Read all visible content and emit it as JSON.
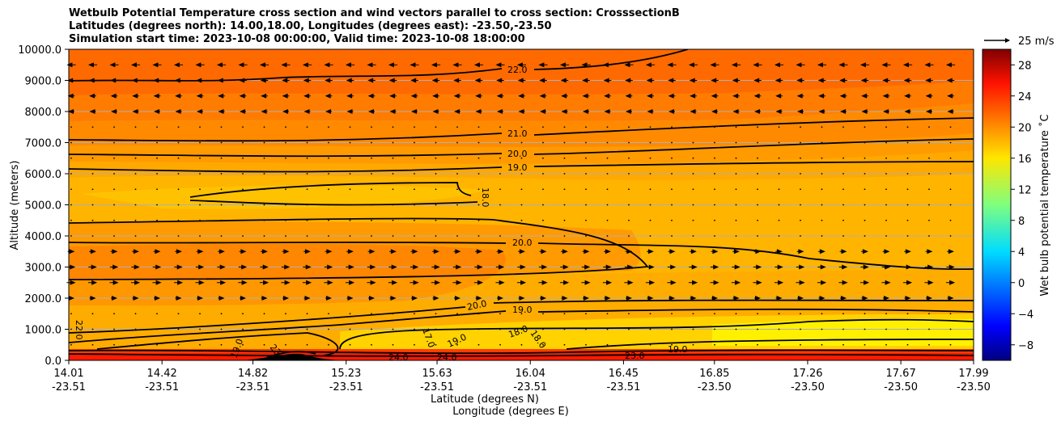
{
  "title_lines": [
    "Wetbulb Potential Temperature cross section and wind vectors parallel to cross section: CrosssectionB",
    "Latitudes (degrees north): 14.00,18.00, Longitudes (degrees east): -23.50,-23.50",
    "Simulation start time: 2023-10-08 00:00:00, Valid time: 2023-10-08 18:00:00"
  ],
  "quiver_key": "25 m/s",
  "chart_data": {
    "type": "heatmap",
    "title": "Wetbulb Potential Temperature cross section and wind vectors parallel to cross section: CrosssectionB",
    "ylabel": "Altitude (meters)",
    "xlabel_lines": [
      "Latitude (degrees N)",
      "Longitude (degrees E)"
    ],
    "ylim": [
      0,
      10000
    ],
    "y_ticks": [
      "0.0",
      "1000.0",
      "2000.0",
      "3000.0",
      "4000.0",
      "5000.0",
      "6000.0",
      "7000.0",
      "8000.0",
      "9000.0",
      "10000.0"
    ],
    "x_ticks": [
      {
        "lat": "14.01",
        "lon": "-23.51"
      },
      {
        "lat": "14.42",
        "lon": "-23.51"
      },
      {
        "lat": "14.82",
        "lon": "-23.51"
      },
      {
        "lat": "15.23",
        "lon": "-23.51"
      },
      {
        "lat": "15.63",
        "lon": "-23.51"
      },
      {
        "lat": "16.04",
        "lon": "-23.51"
      },
      {
        "lat": "16.45",
        "lon": "-23.51"
      },
      {
        "lat": "16.85",
        "lon": "-23.50"
      },
      {
        "lat": "17.26",
        "lon": "-23.50"
      },
      {
        "lat": "17.67",
        "lon": "-23.50"
      },
      {
        "lat": "17.99",
        "lon": "-23.50"
      }
    ],
    "colorbar": {
      "label": "Wet bulb potential temperature ˚C",
      "range": [
        -10,
        30
      ],
      "ticks": [
        "−8",
        "−4",
        "0",
        "4",
        "8",
        "12",
        "16",
        "20",
        "24",
        "28"
      ]
    },
    "contour_labels": [
      "22.0",
      "21.0",
      "20.0",
      "19.0",
      "18.0",
      "20.0",
      "20.0",
      "19.0",
      "22.0",
      "19.0",
      "19.0",
      "17.0",
      "18.0",
      "18.0",
      "24.0",
      "24.0",
      "23.0",
      "19.0",
      "23"
    ],
    "wind_rows": [
      {
        "altitude": 9500,
        "direction": "west",
        "strength": 0.9
      },
      {
        "altitude": 9000,
        "direction": "west",
        "strength": 0.7
      },
      {
        "altitude": 8500,
        "direction": "west",
        "strength": 0.6
      },
      {
        "altitude": 8000,
        "direction": "west",
        "strength": 0.5
      },
      {
        "altitude": 3500,
        "direction": "east",
        "strength": 0.6
      },
      {
        "altitude": 3000,
        "direction": "east",
        "strength": 0.8
      },
      {
        "altitude": 2500,
        "direction": "east",
        "strength": 0.9
      },
      {
        "altitude": 2000,
        "direction": "east",
        "strength": 0.5
      }
    ]
  }
}
